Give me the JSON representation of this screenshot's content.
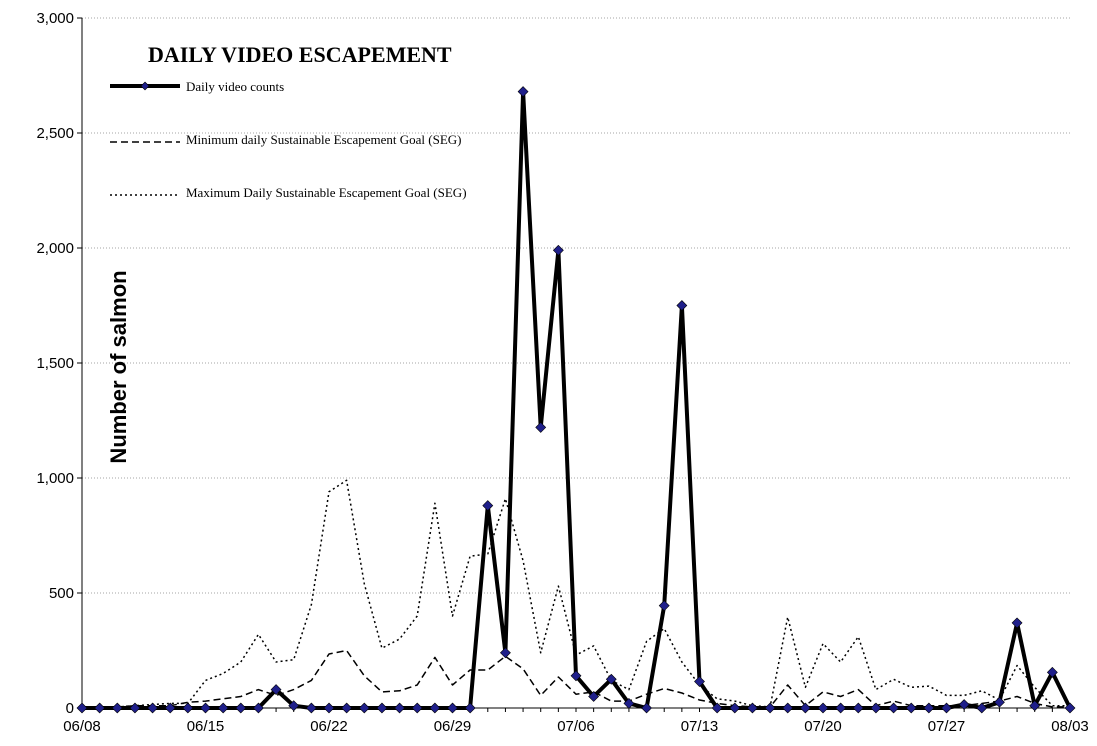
{
  "chart_data": {
    "type": "line",
    "title": "DAILY VIDEO ESCAPEMENT",
    "xlabel": "",
    "ylabel": "Number of salmon",
    "ylim": [
      0,
      3000
    ],
    "yticks": [
      0,
      500,
      1000,
      1500,
      2000,
      2500,
      3000
    ],
    "ytick_labels": [
      "0",
      "500",
      "1,000",
      "1,500",
      "2,000",
      "2,500",
      "3,000"
    ],
    "xlim": [
      "06/08",
      "08/03"
    ],
    "xticks": [
      "06/08",
      "06/15",
      "06/22",
      "06/29",
      "07/06",
      "07/13",
      "07/20",
      "07/27",
      "08/03"
    ],
    "grid": "horizontal",
    "legend_position": "top-left",
    "x": [
      "06/08",
      "06/09",
      "06/10",
      "06/11",
      "06/12",
      "06/13",
      "06/14",
      "06/15",
      "06/16",
      "06/17",
      "06/18",
      "06/19",
      "06/20",
      "06/21",
      "06/22",
      "06/23",
      "06/24",
      "06/25",
      "06/26",
      "06/27",
      "06/28",
      "06/29",
      "06/30",
      "07/01",
      "07/02",
      "07/03",
      "07/04",
      "07/05",
      "07/06",
      "07/07",
      "07/08",
      "07/09",
      "07/10",
      "07/11",
      "07/12",
      "07/13",
      "07/14",
      "07/15",
      "07/16",
      "07/17",
      "07/18",
      "07/19",
      "07/20",
      "07/21",
      "07/22",
      "07/23",
      "07/24",
      "07/25",
      "07/26",
      "07/27",
      "07/28",
      "07/29",
      "07/30",
      "07/31",
      "08/01",
      "08/02",
      "08/03"
    ],
    "series": [
      {
        "name": "Daily video counts",
        "style": "solid-thick-markers",
        "color": "#000000",
        "marker_color": "#1f1f8a",
        "values": [
          0,
          0,
          0,
          0,
          0,
          0,
          0,
          0,
          0,
          0,
          0,
          80,
          10,
          0,
          0,
          0,
          0,
          0,
          0,
          0,
          0,
          0,
          0,
          880,
          240,
          2680,
          1220,
          1990,
          140,
          50,
          125,
          20,
          0,
          445,
          1750,
          115,
          0,
          0,
          0,
          0,
          0,
          0,
          0,
          0,
          0,
          0,
          0,
          0,
          0,
          0,
          15,
          0,
          25,
          370,
          10,
          155,
          0
        ]
      },
      {
        "name": "Minimum daily Sustainable Escapement Goal (SEG)",
        "style": "dashed",
        "color": "#000000",
        "values": [
          5,
          5,
          5,
          10,
          10,
          10,
          25,
          30,
          40,
          50,
          80,
          55,
          80,
          120,
          235,
          250,
          140,
          70,
          75,
          100,
          220,
          100,
          165,
          165,
          225,
          170,
          55,
          135,
          60,
          70,
          30,
          30,
          60,
          85,
          65,
          35,
          20,
          10,
          5,
          5,
          100,
          10,
          70,
          50,
          80,
          10,
          30,
          10,
          10,
          10,
          10,
          20,
          30,
          50,
          20,
          5,
          5
        ]
      },
      {
        "name": "Maximum Daily Sustainable Escapement Goal (SEG)",
        "style": "dotted",
        "color": "#000000",
        "values": [
          5,
          5,
          5,
          10,
          15,
          20,
          20,
          120,
          150,
          200,
          320,
          200,
          210,
          450,
          940,
          990,
          540,
          260,
          300,
          400,
          890,
          400,
          660,
          670,
          910,
          640,
          240,
          530,
          230,
          270,
          120,
          80,
          290,
          345,
          200,
          100,
          40,
          30,
          10,
          5,
          395,
          90,
          280,
          200,
          310,
          80,
          125,
          90,
          95,
          55,
          55,
          75,
          35,
          185,
          90,
          10,
          10
        ]
      }
    ]
  }
}
